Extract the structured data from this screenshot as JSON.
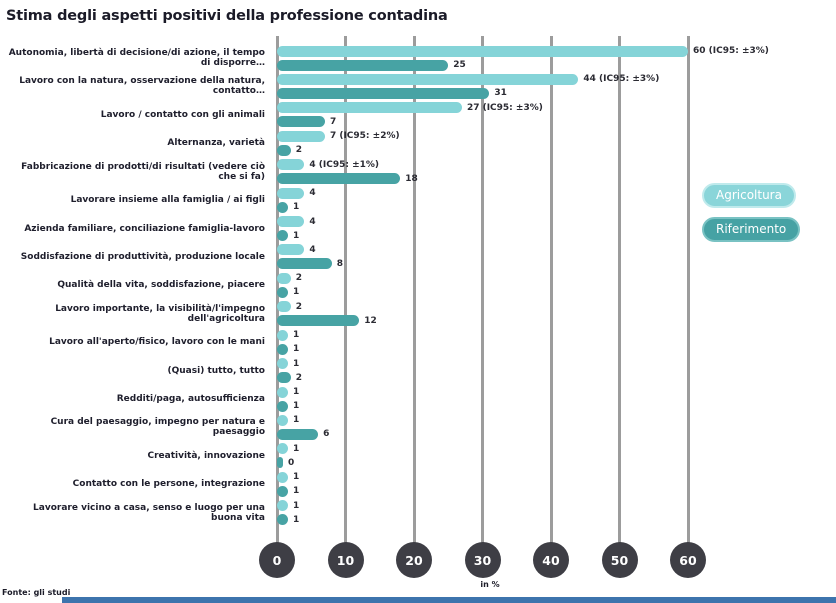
{
  "title": "Stima degli aspetti positivi della professione contadina",
  "axis_label": "in %",
  "source": "Fonte: gli studi",
  "colors": {
    "agricoltura": "#85d4d8",
    "riferimento": "#47a3a4",
    "tick_circle": "#3e3e45",
    "gridline": "#9c9c9c",
    "bottom_strip": "#3d74ad"
  },
  "legend": {
    "agricoltura_label": "Agricoltura",
    "riferimento_label": "Riferimento"
  },
  "chart_data": {
    "type": "bar",
    "orientation": "horizontal",
    "title": "Stima degli aspetti positivi della professione contadina",
    "xlabel": "in %",
    "xlim": [
      0,
      60
    ],
    "xticks": [
      0,
      10,
      20,
      30,
      40,
      50,
      60
    ],
    "grid": true,
    "legend_position": "right",
    "categories": [
      "Autonomia, libertà di decisione/di azione, il tempo di disporre…",
      "Lavoro con la natura, osservazione della natura, contatto…",
      "Lavoro / contatto con gli animali",
      "Alternanza, varietà",
      "Fabbricazione di prodotti/di risultati (vedere ciò che si fa)",
      "Lavorare insieme alla famiglia / ai figli",
      "Azienda familiare, conciliazione famiglia-lavoro",
      "Soddisfazione di produttività, produzione locale",
      "Qualità della vita, soddisfazione, piacere",
      "Lavoro importante, la visibilità/l'impegno dell'agricoltura",
      "Lavoro all'aperto/fisico, lavoro con le mani",
      "(Quasi) tutto, tutto",
      "Redditi/paga, autosufficienza",
      "Cura del paesaggio, impegno per natura e paesaggio",
      "Creatività, innovazione",
      "Contatto con le persone, integrazione",
      "Lavorare vicino a casa, senso e luogo per una buona vita"
    ],
    "series": [
      {
        "name": "Agricoltura",
        "values": [
          60,
          44,
          27,
          7,
          4,
          4,
          4,
          4,
          2,
          2,
          1,
          1,
          1,
          1,
          1,
          1,
          1
        ],
        "labels": [
          "60 (IC95: ±3%)",
          "44 (IC95: ±3%)",
          "27 (IC95: ±3%)",
          "7 (IC95: ±2%)",
          "4 (IC95: ±1%)",
          "4",
          "4",
          "4",
          "2",
          "2",
          "1",
          "1",
          "1",
          "1",
          "1",
          "1",
          "1"
        ]
      },
      {
        "name": "Riferimento",
        "values": [
          25,
          31,
          7,
          2,
          18,
          1,
          1,
          8,
          1,
          12,
          1,
          2,
          1,
          6,
          0,
          1,
          1
        ],
        "labels": [
          "25",
          "31",
          "7",
          "2",
          "18",
          "1",
          "1",
          "8",
          "1",
          "12",
          "1",
          "2",
          "1",
          "6",
          "0",
          "1",
          "1"
        ]
      }
    ]
  }
}
